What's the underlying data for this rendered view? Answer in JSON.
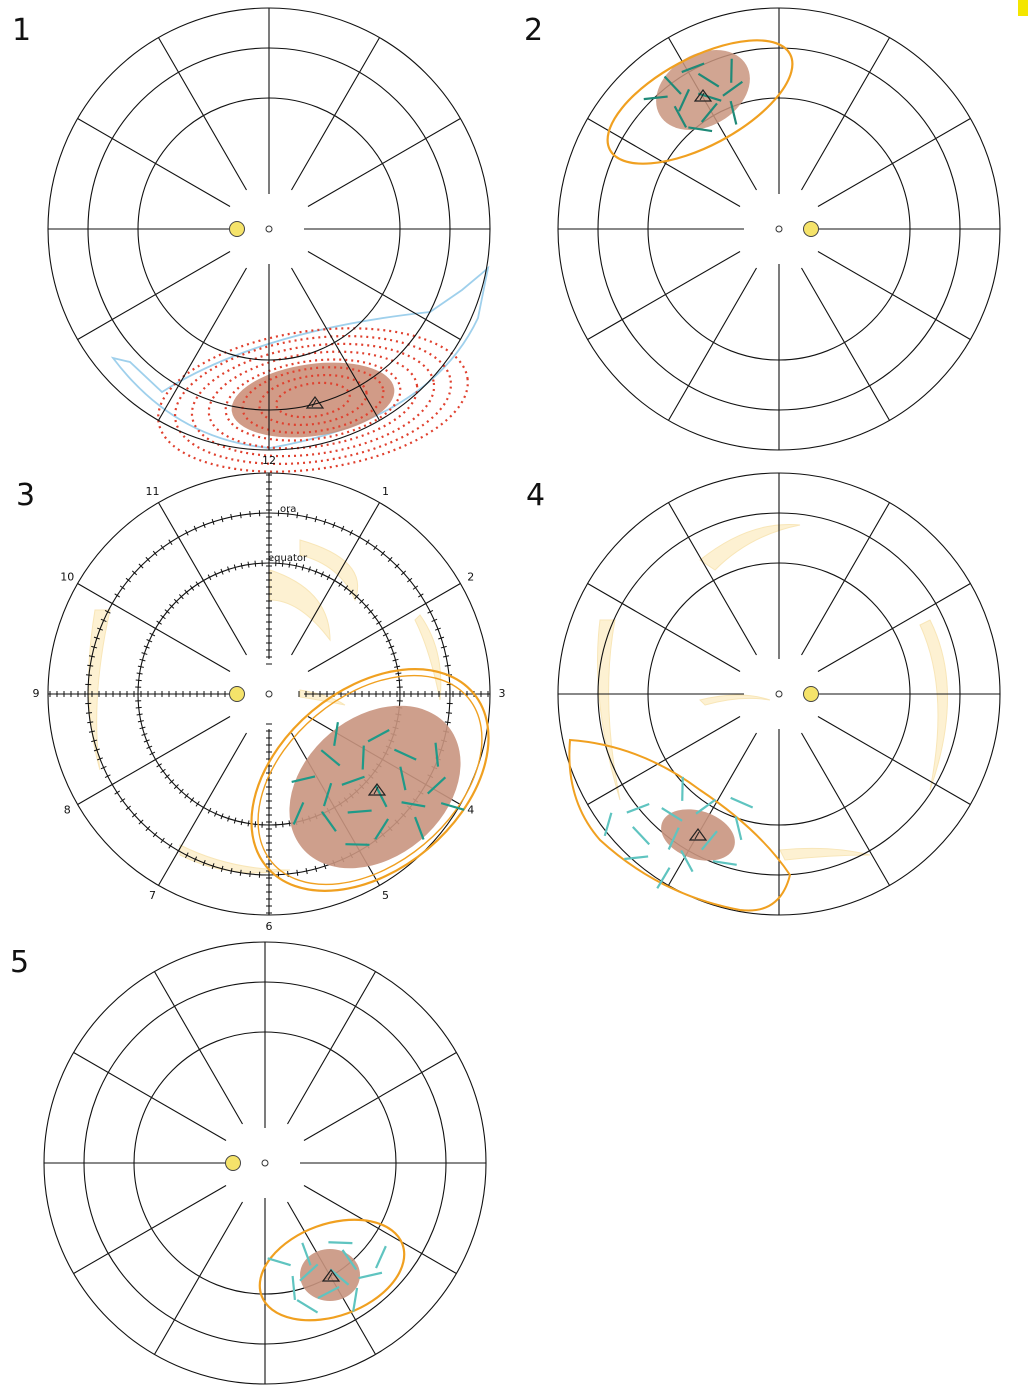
{
  "panels": [
    {
      "label": "1"
    },
    {
      "label": "2"
    },
    {
      "label": "3"
    },
    {
      "label": "4"
    },
    {
      "label": "5"
    }
  ],
  "clock_labels": [
    "12",
    "1",
    "2",
    "3",
    "4",
    "5",
    "6",
    "7",
    "8",
    "9",
    "10",
    "11"
  ],
  "annotations": {
    "ora": "ora",
    "equator": "equator"
  }
}
